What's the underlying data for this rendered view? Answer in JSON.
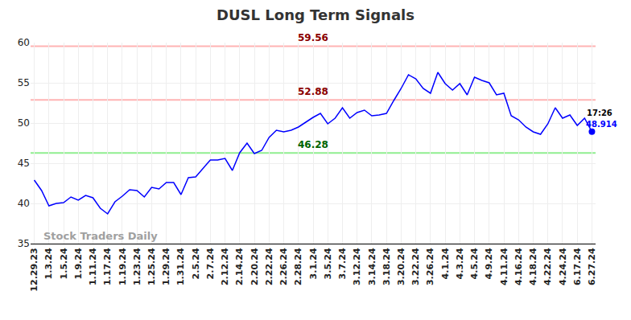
{
  "chart_data": {
    "type": "line",
    "title": "DUSL Long Term Signals",
    "categories": [
      "12.29.23",
      null,
      "1.3.24",
      null,
      "1.5.24",
      null,
      "1.9.24",
      null,
      "1.11.24",
      null,
      "1.17.24",
      null,
      "1.19.24",
      null,
      "1.23.24",
      null,
      "1.25.24",
      null,
      "1.29.24",
      null,
      "1.31.24",
      null,
      "2.5.24",
      null,
      "2.7.24",
      null,
      "2.12.24",
      null,
      "2.14.24",
      null,
      "2.20.24",
      null,
      "2.22.24",
      null,
      "2.26.24",
      null,
      "2.28.24",
      null,
      "3.1.24",
      null,
      "3.5.24",
      null,
      "3.7.24",
      null,
      "3.12.24",
      null,
      "3.14.24",
      null,
      "3.18.24",
      null,
      "3.20.24",
      null,
      "3.22.24",
      null,
      "3.26.24",
      null,
      "4.1.24",
      null,
      "4.3.24",
      null,
      "4.5.24",
      null,
      "4.9.24",
      null,
      "4.11.24",
      null,
      "4.16.24",
      null,
      "4.18.24",
      null,
      "4.22.24",
      null,
      "4.24.24",
      null,
      "6.17.24",
      null,
      "6.27.24"
    ],
    "values": [
      42.9,
      41.6,
      39.7,
      40.0,
      40.1,
      40.8,
      40.4,
      41.0,
      40.7,
      39.4,
      38.7,
      40.2,
      40.9,
      41.7,
      41.6,
      40.8,
      42.0,
      41.8,
      42.6,
      42.6,
      41.1,
      43.2,
      43.3,
      44.4,
      45.4,
      45.4,
      45.6,
      44.1,
      46.3,
      47.5,
      46.2,
      46.6,
      48.2,
      49.1,
      48.9,
      49.1,
      49.5,
      50.1,
      50.7,
      51.2,
      49.9,
      50.6,
      51.9,
      50.6,
      51.3,
      51.6,
      50.9,
      51.0,
      51.2,
      52.8,
      54.3,
      56.0,
      55.5,
      54.3,
      53.7,
      56.3,
      54.9,
      54.1,
      54.9,
      53.5,
      55.7,
      55.3,
      55.0,
      53.5,
      53.7,
      50.9,
      50.4,
      49.5,
      48.9,
      48.6,
      49.9,
      51.9,
      50.6,
      51.0,
      49.7,
      50.6,
      48.914
    ],
    "color": "#0000ff",
    "ylim": [
      35,
      60
    ],
    "yticks": [
      35,
      40,
      45,
      50,
      55,
      60
    ],
    "grid": true,
    "reference_lines": [
      {
        "value": 59.56,
        "label": "59.56",
        "color": "#ffb3b3",
        "label_color": "#8b0000"
      },
      {
        "value": 52.88,
        "label": "52.88",
        "color": "#ffb3b3",
        "label_color": "#8b0000"
      },
      {
        "value": 46.28,
        "label": "46.28",
        "color": "#90ee90",
        "label_color": "#006400"
      }
    ],
    "last_point": {
      "time": "17:26",
      "label": "48.914"
    },
    "watermark": "Stock Traders Daily"
  }
}
